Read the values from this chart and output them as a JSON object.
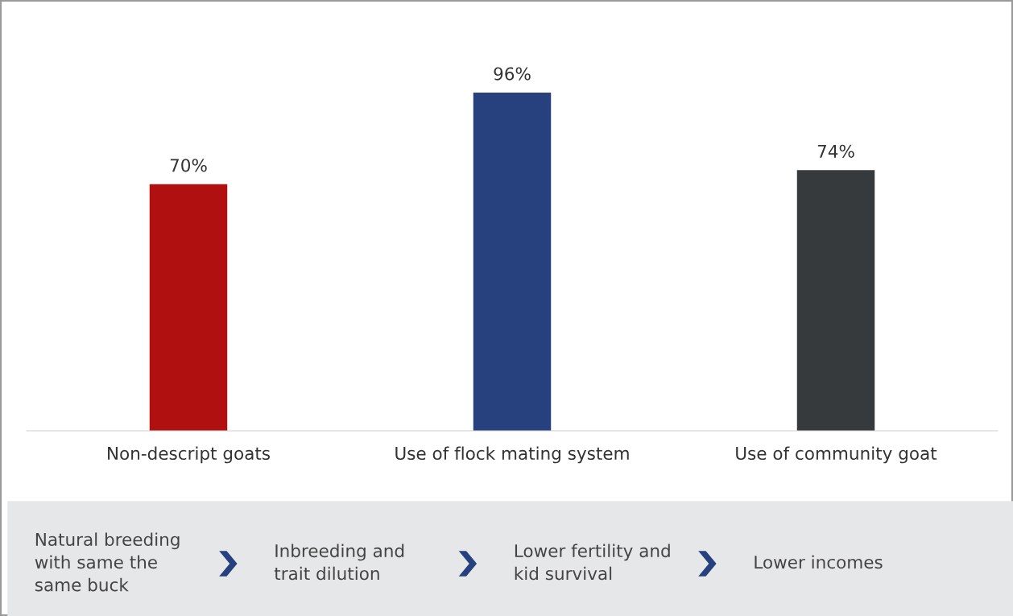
{
  "chart_data": {
    "type": "bar",
    "categories": [
      "Non-descript goats",
      "Use of flock mating system",
      "Use of community goat"
    ],
    "values": [
      70,
      96,
      74
    ],
    "colors": [
      "#b01010",
      "#27417e",
      "#373a3d"
    ],
    "value_labels": [
      "70%",
      "96%",
      "74%"
    ],
    "grid": false,
    "legend": false,
    "annotations": [
      "Natural breeding\nwith same the\nsame buck",
      "Inbreeding and\ntrait dilution",
      "Lower fertility and\nkid survival",
      "Lower incomes"
    ]
  }
}
